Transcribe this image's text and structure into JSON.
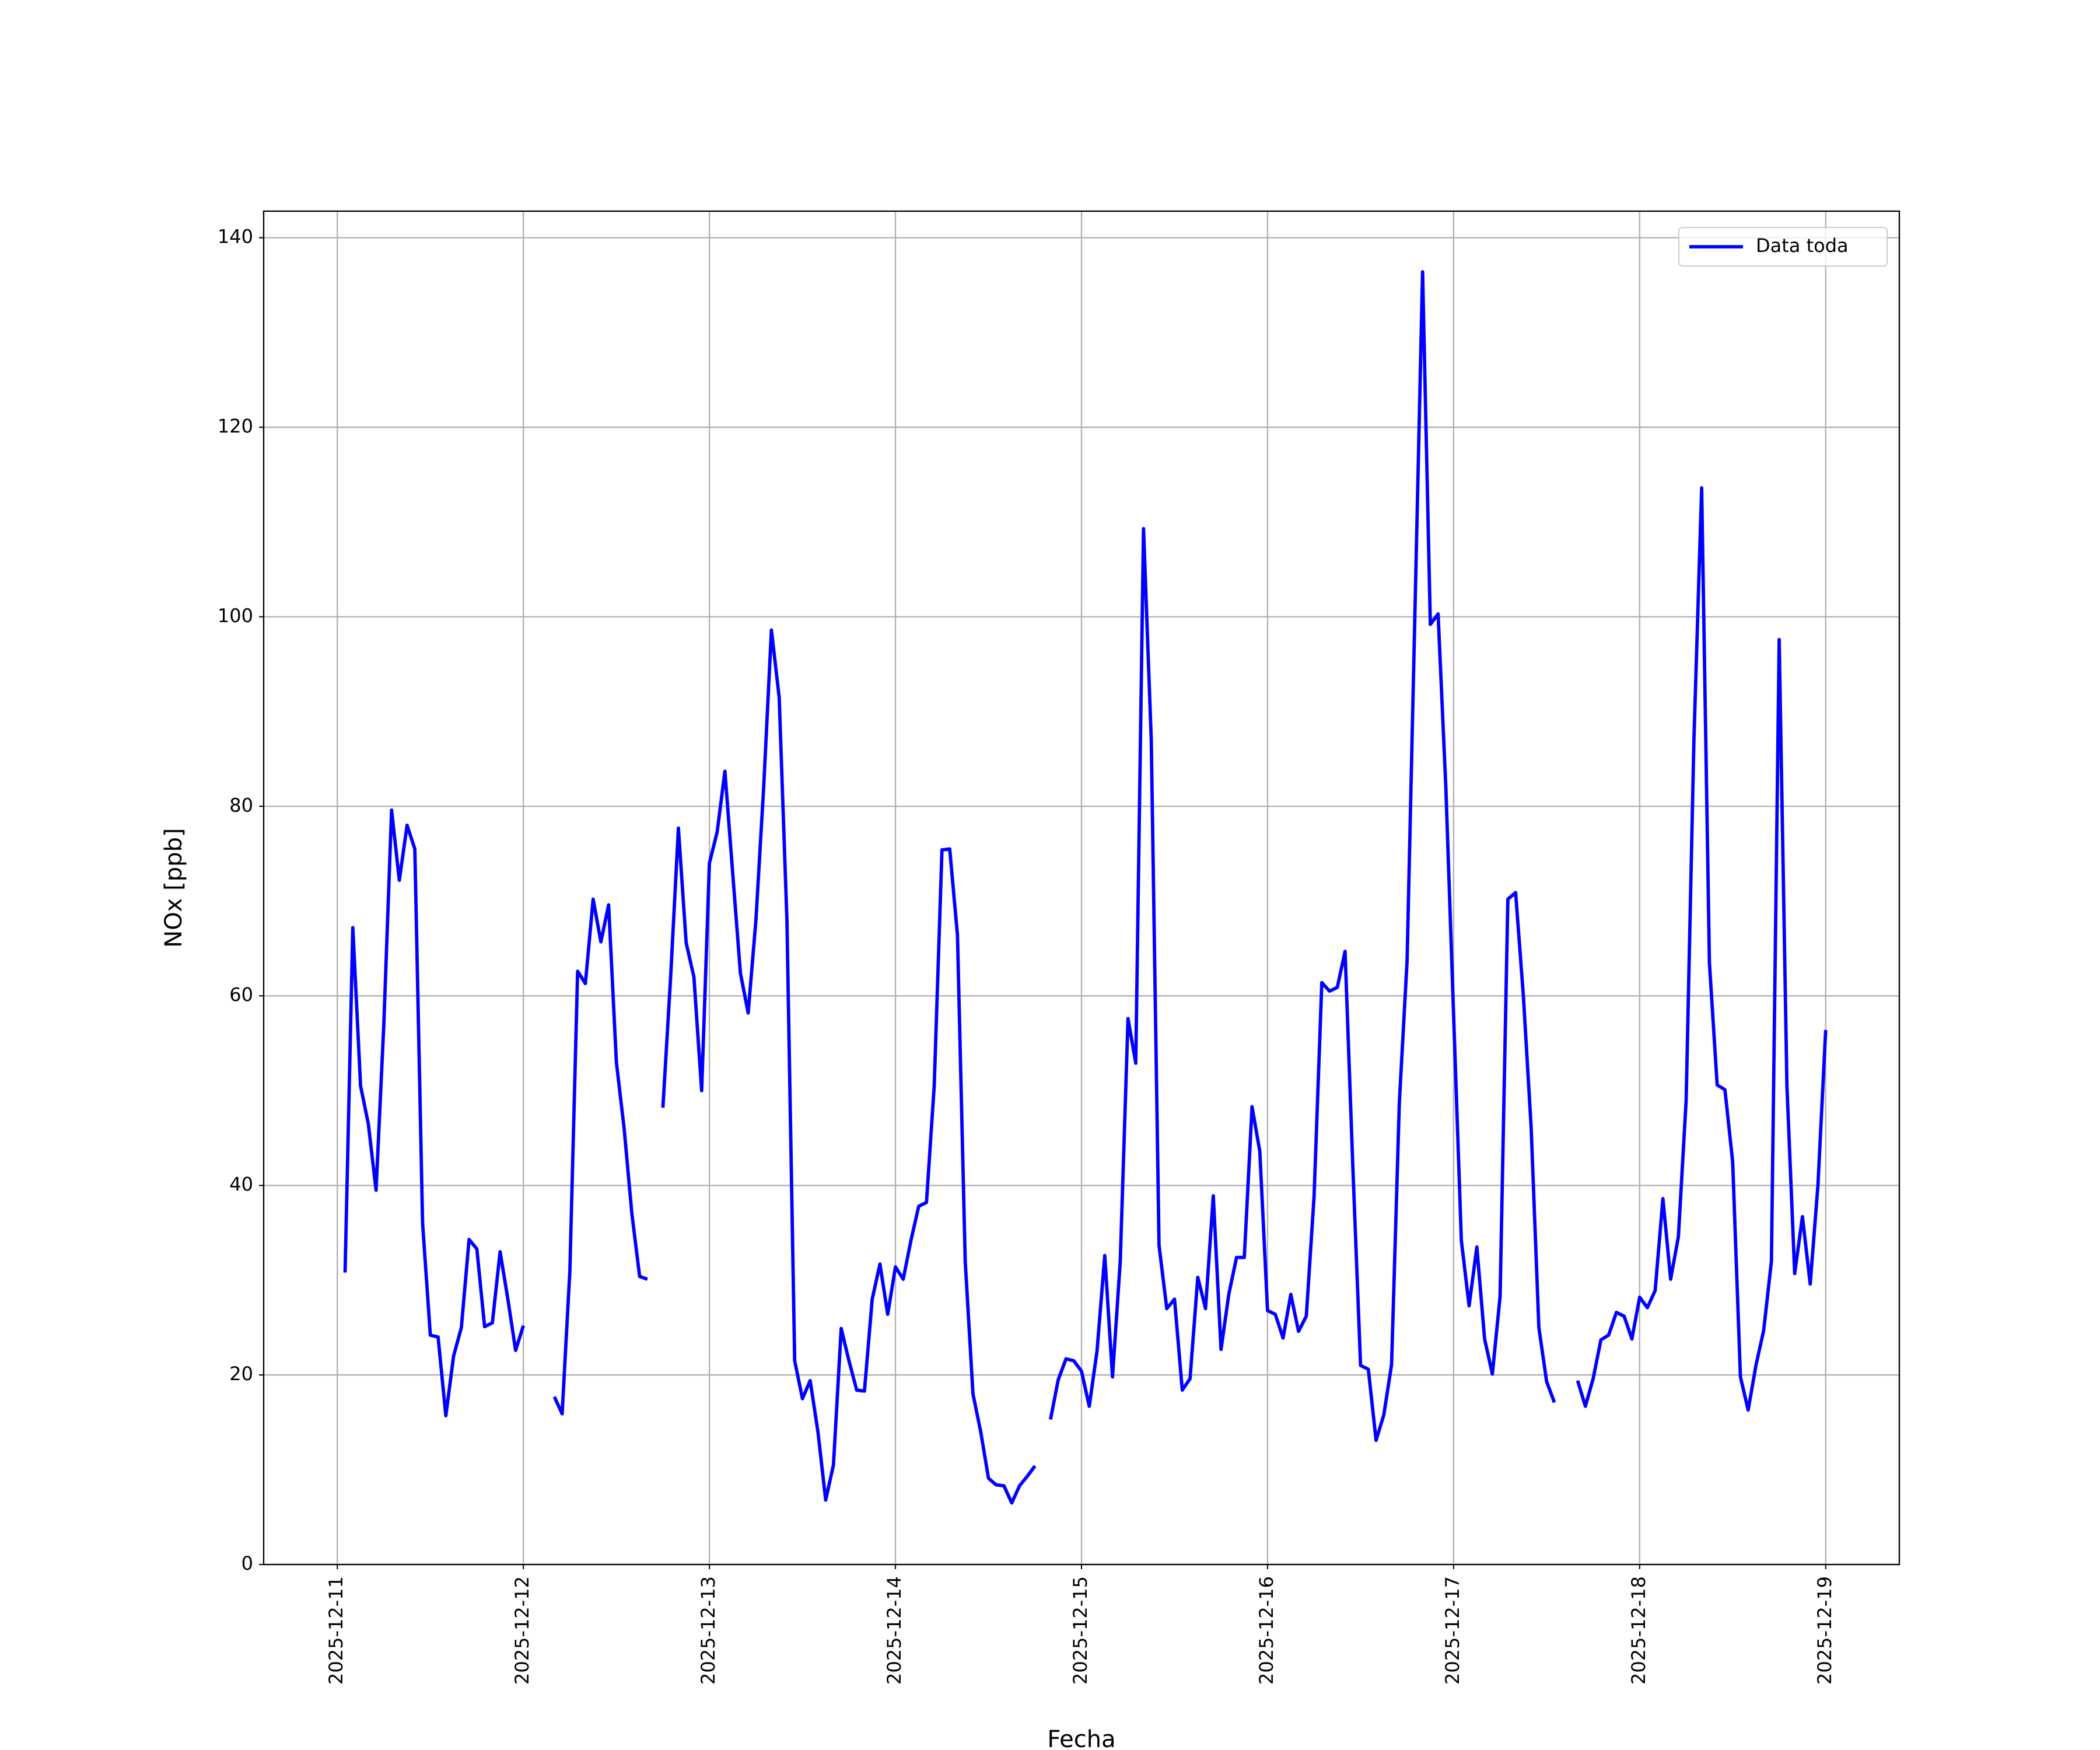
{
  "chart_data": {
    "type": "line",
    "xlabel": "Fecha",
    "ylabel": "NOx [ppb]",
    "x": [
      "2025-12-11 01:00",
      "2025-12-11 02:00",
      "2025-12-11 03:00",
      "2025-12-11 04:00",
      "2025-12-11 05:00",
      "2025-12-11 06:00",
      "2025-12-11 07:00",
      "2025-12-11 08:00",
      "2025-12-11 09:00",
      "2025-12-11 10:00",
      "2025-12-11 11:00",
      "2025-12-11 12:00",
      "2025-12-11 13:00",
      "2025-12-11 14:00",
      "2025-12-11 15:00",
      "2025-12-11 16:00",
      "2025-12-11 17:00",
      "2025-12-11 18:00",
      "2025-12-11 19:00",
      "2025-12-11 20:00",
      "2025-12-11 21:00",
      "2025-12-11 22:00",
      "2025-12-11 23:00",
      "2025-12-12 00:00",
      "2025-12-12 01:00",
      "2025-12-12 02:00",
      "2025-12-12 03:00",
      "2025-12-12 04:00",
      "2025-12-12 05:00",
      "2025-12-12 06:00",
      "2025-12-12 07:00",
      "2025-12-12 08:00",
      "2025-12-12 09:00",
      "2025-12-12 10:00",
      "2025-12-12 11:00",
      "2025-12-12 12:00",
      "2025-12-12 13:00",
      "2025-12-12 14:00",
      "2025-12-12 15:00",
      "2025-12-12 16:00",
      "2025-12-12 17:00",
      "2025-12-12 18:00",
      "2025-12-12 19:00",
      "2025-12-12 20:00",
      "2025-12-12 21:00",
      "2025-12-12 22:00",
      "2025-12-12 23:00",
      "2025-12-13 00:00",
      "2025-12-13 01:00",
      "2025-12-13 02:00",
      "2025-12-13 03:00",
      "2025-12-13 04:00",
      "2025-12-13 05:00",
      "2025-12-13 06:00",
      "2025-12-13 07:00",
      "2025-12-13 08:00",
      "2025-12-13 09:00",
      "2025-12-13 10:00",
      "2025-12-13 11:00",
      "2025-12-13 12:00",
      "2025-12-13 13:00",
      "2025-12-13 14:00",
      "2025-12-13 15:00",
      "2025-12-13 16:00",
      "2025-12-13 17:00",
      "2025-12-13 18:00",
      "2025-12-13 19:00",
      "2025-12-13 20:00",
      "2025-12-13 21:00",
      "2025-12-13 22:00",
      "2025-12-13 23:00",
      "2025-12-14 00:00",
      "2025-12-14 01:00",
      "2025-12-14 02:00",
      "2025-12-14 03:00",
      "2025-12-14 04:00",
      "2025-12-14 05:00",
      "2025-12-14 06:00",
      "2025-12-14 07:00",
      "2025-12-14 08:00",
      "2025-12-14 09:00",
      "2025-12-14 10:00",
      "2025-12-14 11:00",
      "2025-12-14 12:00",
      "2025-12-14 13:00",
      "2025-12-14 14:00",
      "2025-12-14 15:00",
      "2025-12-14 16:00",
      "2025-12-14 17:00",
      "2025-12-14 18:00",
      "2025-12-14 19:00",
      "2025-12-14 20:00",
      "2025-12-14 21:00",
      "2025-12-14 22:00",
      "2025-12-14 23:00",
      "2025-12-15 00:00",
      "2025-12-15 01:00",
      "2025-12-15 02:00",
      "2025-12-15 03:00",
      "2025-12-15 04:00",
      "2025-12-15 05:00",
      "2025-12-15 06:00",
      "2025-12-15 07:00",
      "2025-12-15 08:00",
      "2025-12-15 09:00",
      "2025-12-15 10:00",
      "2025-12-15 11:00",
      "2025-12-15 12:00",
      "2025-12-15 13:00",
      "2025-12-15 14:00",
      "2025-12-15 15:00",
      "2025-12-15 16:00",
      "2025-12-15 17:00",
      "2025-12-15 18:00",
      "2025-12-15 19:00",
      "2025-12-15 20:00",
      "2025-12-15 21:00",
      "2025-12-15 22:00",
      "2025-12-15 23:00",
      "2025-12-16 00:00",
      "2025-12-16 01:00",
      "2025-12-16 02:00",
      "2025-12-16 03:00",
      "2025-12-16 04:00",
      "2025-12-16 05:00",
      "2025-12-16 06:00",
      "2025-12-16 07:00",
      "2025-12-16 08:00",
      "2025-12-16 09:00",
      "2025-12-16 10:00",
      "2025-12-16 11:00",
      "2025-12-16 12:00",
      "2025-12-16 13:00",
      "2025-12-16 14:00",
      "2025-12-16 15:00",
      "2025-12-16 16:00",
      "2025-12-16 17:00",
      "2025-12-16 18:00",
      "2025-12-16 19:00",
      "2025-12-16 20:00",
      "2025-12-16 21:00",
      "2025-12-16 22:00",
      "2025-12-16 23:00",
      "2025-12-17 00:00",
      "2025-12-17 01:00",
      "2025-12-17 02:00",
      "2025-12-17 03:00",
      "2025-12-17 04:00",
      "2025-12-17 05:00",
      "2025-12-17 06:00",
      "2025-12-17 07:00",
      "2025-12-17 08:00",
      "2025-12-17 09:00",
      "2025-12-17 10:00",
      "2025-12-17 11:00",
      "2025-12-17 12:00",
      "2025-12-17 13:00",
      "2025-12-17 14:00",
      "2025-12-17 15:00",
      "2025-12-17 16:00",
      "2025-12-17 17:00",
      "2025-12-17 18:00",
      "2025-12-17 19:00",
      "2025-12-17 20:00",
      "2025-12-17 21:00",
      "2025-12-17 22:00",
      "2025-12-17 23:00",
      "2025-12-18 00:00",
      "2025-12-18 01:00",
      "2025-12-18 02:00",
      "2025-12-18 03:00",
      "2025-12-18 04:00",
      "2025-12-18 05:00",
      "2025-12-18 06:00",
      "2025-12-18 07:00",
      "2025-12-18 08:00",
      "2025-12-18 09:00",
      "2025-12-18 10:00",
      "2025-12-18 11:00",
      "2025-12-18 12:00",
      "2025-12-18 13:00",
      "2025-12-18 14:00",
      "2025-12-18 15:00",
      "2025-12-18 16:00",
      "2025-12-18 17:00",
      "2025-12-18 18:00",
      "2025-12-18 19:00",
      "2025-12-18 20:00",
      "2025-12-18 21:00",
      "2025-12-18 22:00",
      "2025-12-18 23:00",
      "2025-12-19 00:00"
    ],
    "series": [
      {
        "name": "Data toda",
        "color": "#0000ff",
        "values": [
          30.8,
          67.2,
          50.5,
          46.5,
          39.5,
          57,
          79.6,
          72.2,
          78,
          75.5,
          36,
          24.2,
          24,
          15.7,
          22,
          25,
          34.3,
          33.3,
          25.1,
          25.5,
          33,
          28,
          22.6,
          25.2,
          null,
          null,
          null,
          17.7,
          15.9,
          31,
          62.6,
          61.3,
          70.2,
          65.7,
          69.6,
          53,
          46,
          37,
          30.4,
          30.1,
          null,
          48.2,
          62,
          77.7,
          65.6,
          62,
          50,
          74,
          77.3,
          83.7,
          73,
          62.4,
          58.2,
          68,
          82,
          98.6,
          91.5,
          68,
          21.5,
          17.5,
          19.4,
          14,
          6.8,
          10.5,
          24.9,
          21.5,
          18.4,
          18.3,
          28,
          31.7,
          26.4,
          31.4,
          30.1,
          34.2,
          37.8,
          38.2,
          50.5,
          75.4,
          75.5,
          66.4,
          32,
          18,
          14,
          9.1,
          8.4,
          8.3,
          6.5,
          8.3,
          9.3,
          10.4,
          null,
          15.3,
          19.5,
          21.7,
          21.5,
          20.4,
          16.7,
          22.5,
          32.6,
          19.8,
          32,
          57.6,
          52.9,
          109.3,
          87,
          33.7,
          27,
          28,
          18.4,
          19.6,
          30.3,
          27,
          38.9,
          22.7,
          28.5,
          32.4,
          32.4,
          48.3,
          43.6,
          26.8,
          26.4,
          23.9,
          28.5,
          24.6,
          26.2,
          38.8,
          61.4,
          60.5,
          60.9,
          64.7,
          42,
          21,
          20.6,
          13.1,
          15.8,
          21.1,
          48.7,
          63.7,
          100,
          136.4,
          99.2,
          100.3,
          82,
          58,
          34.2,
          27.3,
          33.5,
          23.8,
          20.1,
          28.3,
          70.2,
          70.9,
          60,
          46.2,
          25,
          19.3,
          17.1,
          null,
          null,
          19.4,
          16.7,
          19.6,
          23.7,
          24.2,
          26.6,
          26.2,
          23.8,
          28.2,
          27.1,
          28.9,
          38.6,
          30.1,
          34.6,
          49,
          87,
          113.6,
          63.5,
          50.6,
          50.1,
          42.5,
          19.8,
          16.3,
          21,
          24.7,
          32,
          97.6,
          50.5,
          30.7,
          36.7,
          29.6,
          40,
          56.4
        ]
      }
    ],
    "xlim": [
      "2025-12-10 14:30",
      "2025-12-19 09:30"
    ],
    "xticks": [
      "2025-12-11",
      "2025-12-12",
      "2025-12-13",
      "2025-12-14",
      "2025-12-15",
      "2025-12-16",
      "2025-12-17",
      "2025-12-18",
      "2025-12-19"
    ],
    "ylim": [
      0,
      142.8
    ],
    "yticks": [
      0,
      20,
      40,
      60,
      80,
      100,
      120,
      140
    ],
    "grid": true,
    "legend": "upper right"
  }
}
